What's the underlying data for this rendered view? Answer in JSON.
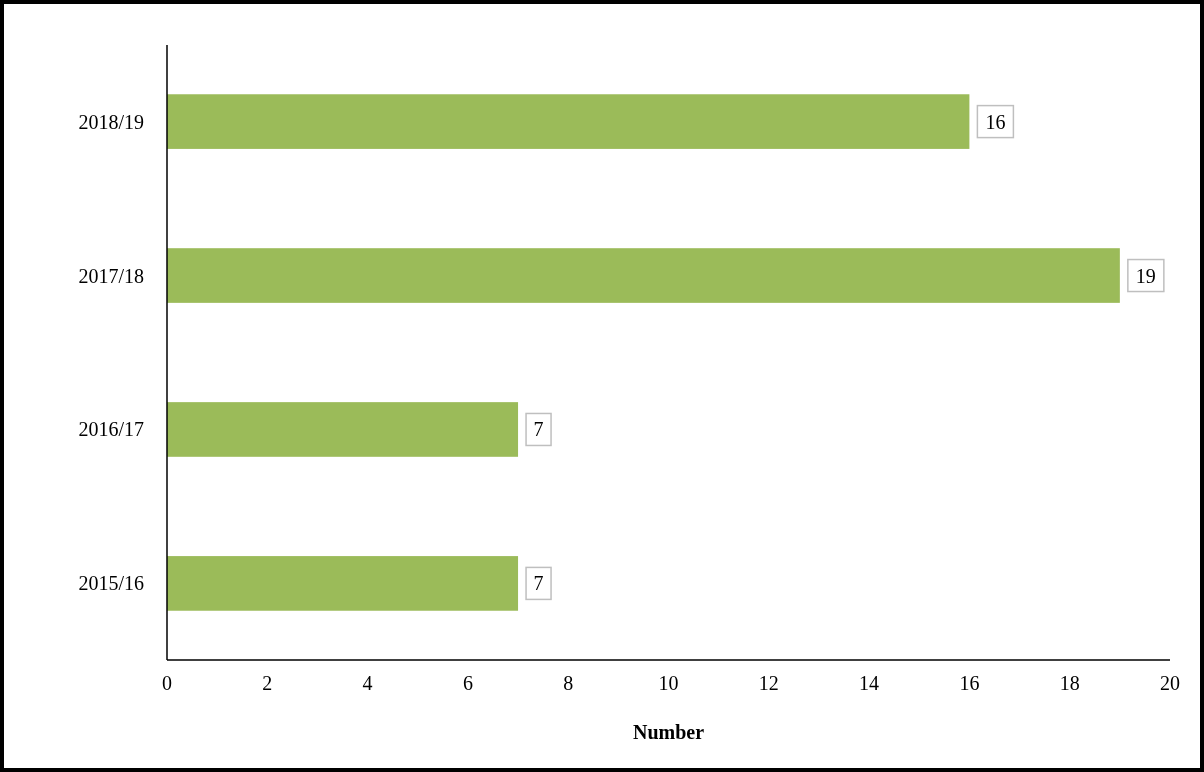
{
  "chart_data": {
    "type": "bar",
    "orientation": "horizontal",
    "xlabel": "Number",
    "categories": [
      "2018/19",
      "2017/18",
      "2016/17",
      "2015/16"
    ],
    "values": [
      16,
      19,
      7,
      7
    ],
    "color": "#9bbb59",
    "xlim": [
      0,
      20
    ],
    "xticks": [
      0,
      2,
      4,
      6,
      8,
      10,
      12,
      14,
      16,
      18,
      20
    ],
    "grid": false,
    "data_labels": true
  }
}
